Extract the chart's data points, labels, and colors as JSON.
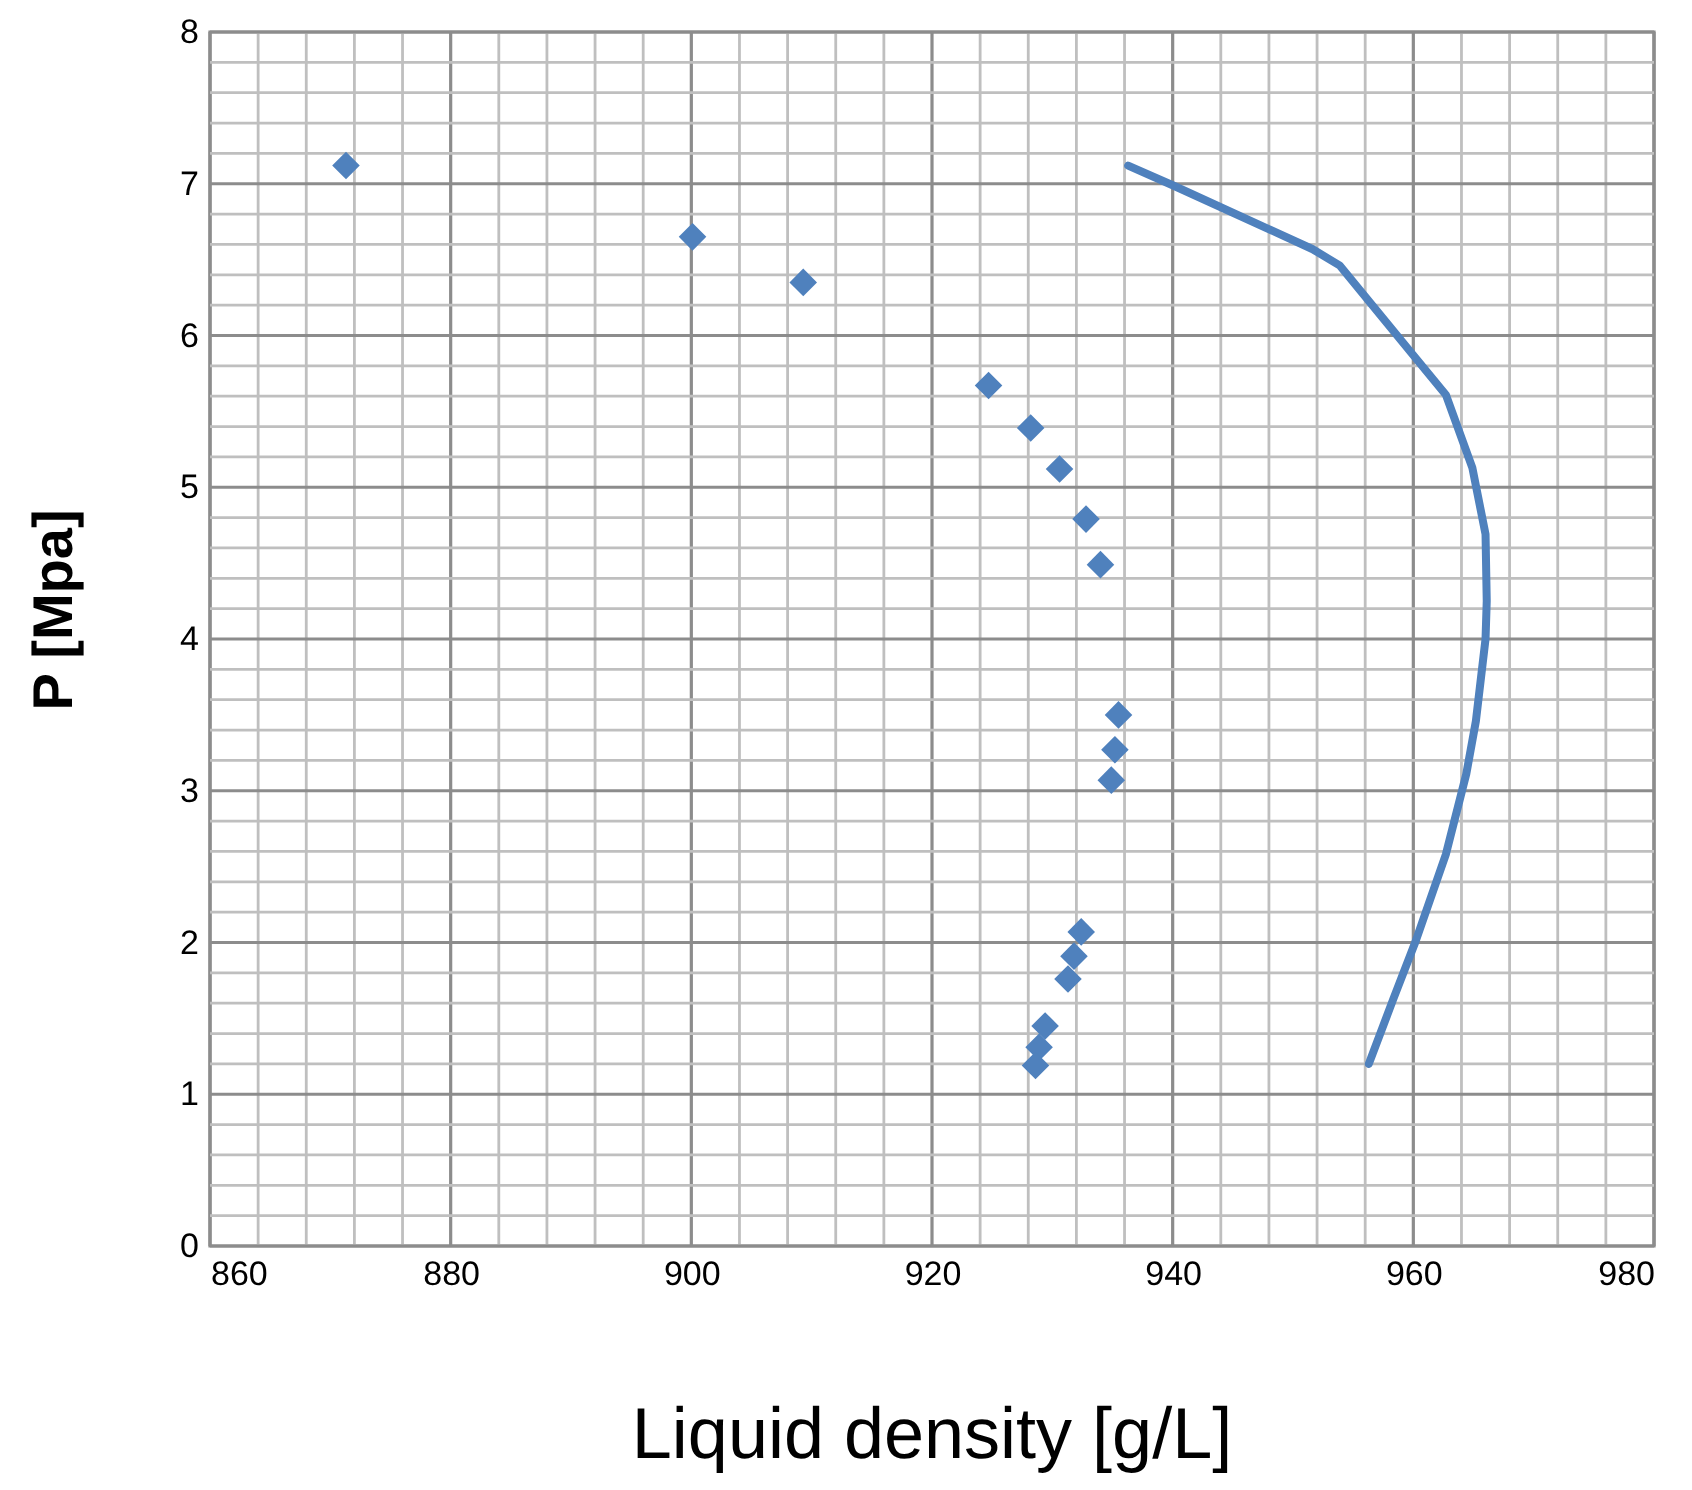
{
  "chart_data": {
    "type": "scatter",
    "xlabel": "Liquid density [g/L]",
    "ylabel": "P [Mpa]",
    "xlim": [
      860,
      980
    ],
    "ylim": [
      0,
      8
    ],
    "xticks": [
      860,
      {
        "value": 864,
        "label": null
      },
      {
        "value": 868,
        "label": null
      },
      {
        "value": 872,
        "label": null
      },
      {
        "value": 876,
        "label": null
      },
      880,
      {
        "value": 884,
        "label": null
      },
      {
        "value": 888,
        "label": null
      },
      {
        "value": 892,
        "label": null
      },
      {
        "value": 896,
        "label": null
      },
      900,
      {
        "value": 904,
        "label": null
      },
      {
        "value": 908,
        "label": null
      },
      {
        "value": 912,
        "label": null
      },
      {
        "value": 916,
        "label": null
      },
      920,
      {
        "value": 924,
        "label": null
      },
      {
        "value": 928,
        "label": null
      },
      {
        "value": 932,
        "label": null
      },
      {
        "value": 936,
        "label": null
      },
      940,
      {
        "value": 944,
        "label": null
      },
      {
        "value": 948,
        "label": null
      },
      {
        "value": 952,
        "label": null
      },
      {
        "value": 956,
        "label": null
      },
      960,
      {
        "value": 964,
        "label": null
      },
      {
        "value": 968,
        "label": null
      },
      {
        "value": 972,
        "label": null
      },
      {
        "value": 976,
        "label": null
      },
      980
    ],
    "yticks": [
      0,
      {
        "value": 0.2,
        "label": null
      },
      {
        "value": 0.4,
        "label": null
      },
      {
        "value": 0.6,
        "label": null
      },
      {
        "value": 0.8,
        "label": null
      },
      1,
      {
        "value": 1.2,
        "label": null
      },
      {
        "value": 1.4,
        "label": null
      },
      {
        "value": 1.6,
        "label": null
      },
      {
        "value": 1.8,
        "label": null
      },
      2,
      {
        "value": 2.2,
        "label": null
      },
      {
        "value": 2.4,
        "label": null
      },
      {
        "value": 2.6,
        "label": null
      },
      {
        "value": 2.8,
        "label": null
      },
      3,
      {
        "value": 3.2,
        "label": null
      },
      {
        "value": 3.4,
        "label": null
      },
      {
        "value": 3.6,
        "label": null
      },
      {
        "value": 3.8,
        "label": null
      },
      4,
      {
        "value": 4.2,
        "label": null
      },
      {
        "value": 4.4,
        "label": null
      },
      {
        "value": 4.6,
        "label": null
      },
      {
        "value": 4.8,
        "label": null
      },
      5,
      {
        "value": 5.2,
        "label": null
      },
      {
        "value": 5.4,
        "label": null
      },
      {
        "value": 5.6,
        "label": null
      },
      {
        "value": 5.8,
        "label": null
      },
      6,
      {
        "value": 6.2,
        "label": null
      },
      {
        "value": 6.4,
        "label": null
      },
      {
        "value": 6.6,
        "label": null
      },
      {
        "value": 6.8,
        "label": null
      },
      7,
      {
        "value": 7.2,
        "label": null
      },
      {
        "value": 7.4,
        "label": null
      },
      {
        "value": 7.6,
        "label": null
      },
      {
        "value": 7.8,
        "label": null
      },
      8
    ],
    "grid": true,
    "series": [
      {
        "marker": "diamond",
        "color": "#4f81bd",
        "x": [
          871.3,
          900.1,
          909.3,
          924.7,
          928.2,
          930.6,
          932.8,
          934.0,
          935.5,
          935.2,
          934.9,
          932.4,
          931.8,
          931.3,
          929.4,
          928.9,
          928.6
        ],
        "values": [
          7.12,
          6.65,
          6.35,
          5.67,
          5.39,
          5.12,
          4.79,
          4.49,
          3.5,
          3.27,
          3.07,
          2.07,
          1.91,
          1.76,
          1.45,
          1.31,
          1.19
        ]
      },
      {
        "type": "line",
        "marker": "none",
        "line_style": "solid",
        "color": "#4f81bd",
        "x": [
          936.3,
          940.0,
          951.6,
          953.9,
          960.0,
          962.7,
          964.9,
          966.0,
          966.1,
          966.0,
          965.2,
          964.4,
          962.7,
          960.2,
          958.3,
          956.3
        ],
        "values": [
          7.12,
          6.99,
          6.57,
          6.46,
          5.87,
          5.61,
          5.13,
          4.69,
          4.25,
          4.0,
          3.46,
          3.11,
          2.58,
          2.01,
          1.62,
          1.2
        ]
      }
    ]
  }
}
